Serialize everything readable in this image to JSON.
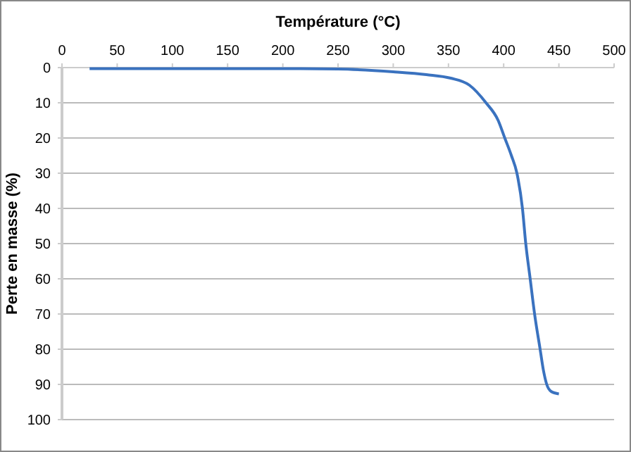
{
  "chart_data": {
    "type": "line",
    "xlabel": "Température (°C)",
    "ylabel": "Perte en masse (%)",
    "xlim": [
      0,
      500
    ],
    "xticks": [
      0,
      50,
      100,
      150,
      200,
      250,
      300,
      350,
      400,
      450,
      500
    ],
    "ylim": [
      100,
      0
    ],
    "yticks": [
      0,
      10,
      20,
      30,
      40,
      50,
      60,
      70,
      80,
      90,
      100
    ],
    "grid": "y",
    "marker": "none",
    "line_style": "solid",
    "series": [
      {
        "color": "#3a72bf",
        "x": [
          25,
          100,
          200,
          250,
          300,
          330,
          352,
          369,
          384,
          395,
          401,
          407,
          412,
          417,
          420,
          424,
          428,
          433,
          436,
          439,
          443,
          450
        ],
        "values": [
          0.3,
          0.3,
          0.3,
          0.4,
          1.2,
          2,
          3,
          5,
          10,
          15,
          20,
          25,
          30,
          40,
          50,
          60,
          70,
          80,
          86,
          90,
          92,
          92.7
        ]
      }
    ]
  }
}
